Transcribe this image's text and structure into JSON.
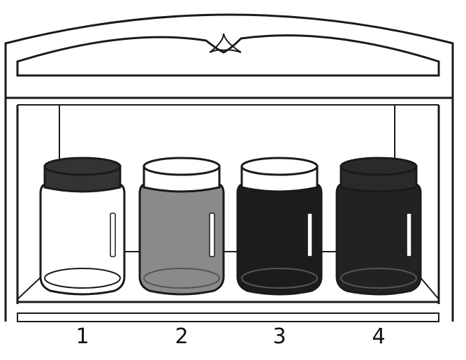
{
  "colors": {
    "outline": "#1a1a1a",
    "background": "#ffffff"
  },
  "jars": [
    {
      "label": "1",
      "lid": "#333333",
      "liquid": "#ffffff"
    },
    {
      "label": "2",
      "lid": "#ffffff",
      "liquid": "#8a8a8a"
    },
    {
      "label": "3",
      "lid": "#ffffff",
      "liquid": "#1c1c1c"
    },
    {
      "label": "4",
      "lid": "#2a2a2a",
      "liquid": "#222222"
    }
  ]
}
